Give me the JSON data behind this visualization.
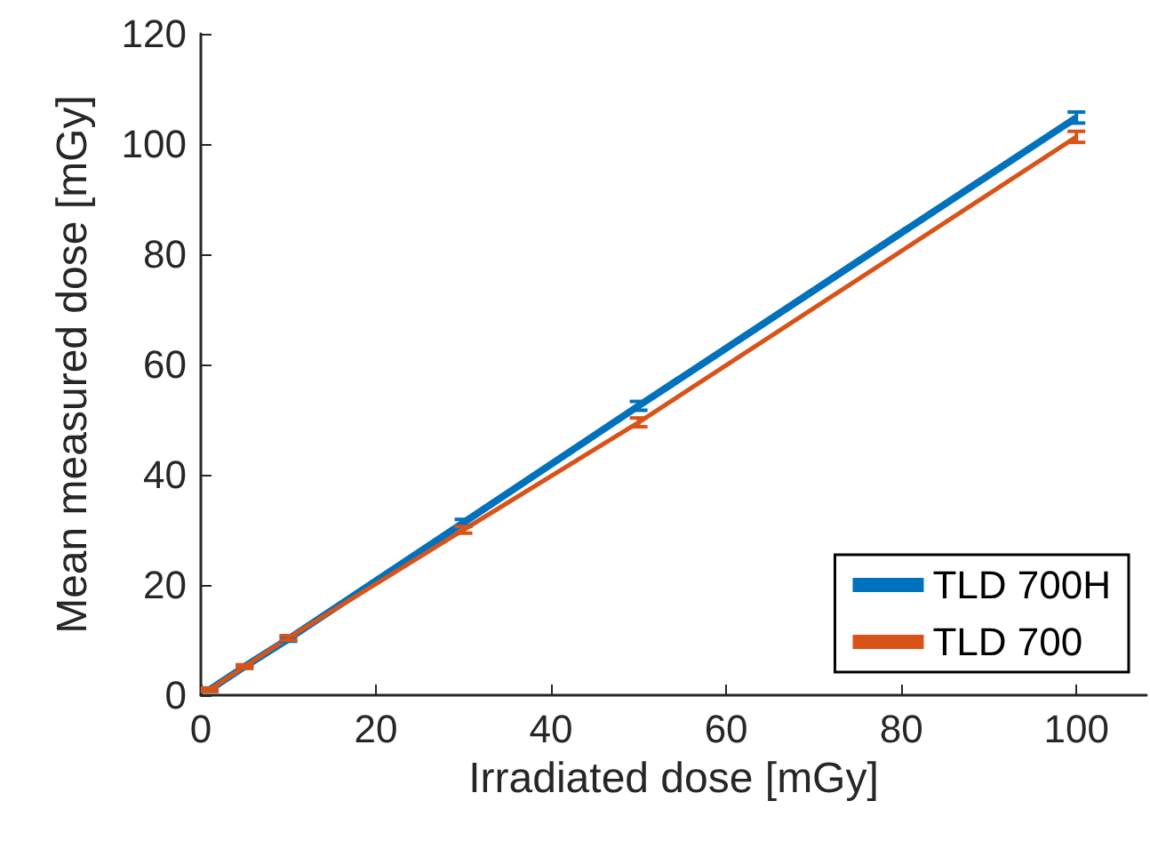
{
  "chart_data": {
    "type": "line",
    "xlabel": "Irradiated dose [mGy]",
    "ylabel": "Mean measured dose [mGy]",
    "x": [
      1,
      5,
      10,
      30,
      50,
      100
    ],
    "series": [
      {
        "name": "TLD 700H",
        "color": "#0072bd",
        "values": [
          1.0,
          5.2,
          10.2,
          31.3,
          52.5,
          104.8
        ],
        "errors": [
          0.3,
          0.3,
          0.4,
          0.6,
          0.8,
          1.0
        ]
      },
      {
        "name": "TLD 700",
        "color": "#d95319",
        "values": [
          1.0,
          5.2,
          10.4,
          30.0,
          49.5,
          101.3
        ],
        "errors": [
          0.3,
          0.3,
          0.4,
          0.6,
          0.8,
          1.0
        ]
      }
    ],
    "xlim": [
      0,
      108
    ],
    "xticks": [
      0,
      20,
      40,
      60,
      80,
      100
    ],
    "ylim": [
      0,
      120
    ],
    "yticks": [
      0,
      20,
      40,
      60,
      80,
      100,
      120
    ],
    "grid": false,
    "legend": "bottom right",
    "marker": "none",
    "line_style": "solid"
  }
}
